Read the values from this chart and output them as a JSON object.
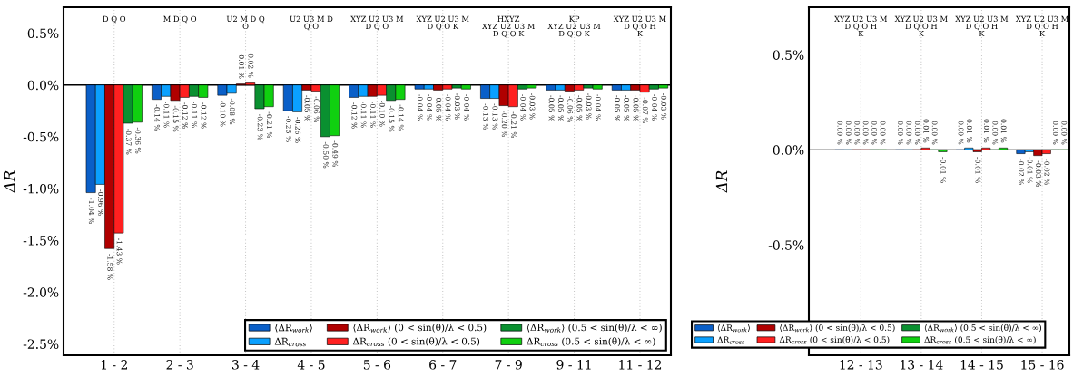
{
  "chart_data": [
    {
      "type": "bar",
      "ylabel": "ΔR",
      "categories": [
        "1 - 2",
        "2 - 3",
        "3 - 4",
        "4 - 5",
        "5 - 6",
        "6 - 7",
        "7 - 9",
        "9 - 11",
        "11 - 12"
      ],
      "ylim": [
        -2.61,
        0.75
      ],
      "yticks": [
        {
          "value": 0.5,
          "label": "0.5%"
        },
        {
          "value": 0.0,
          "label": "0.0%"
        },
        {
          "value": -0.5,
          "label": "-0.5%"
        },
        {
          "value": -1.0,
          "label": "-1.0%"
        },
        {
          "value": -1.5,
          "label": "-1.5%"
        },
        {
          "value": -2.0,
          "label": "-2.0%"
        },
        {
          "value": -2.5,
          "label": "-2.5%"
        }
      ],
      "grid": "x",
      "legend": "bottom right",
      "series": [
        {
          "name": "⟨ΔR$_{work}$⟩",
          "color": "#0a5fc8",
          "values": [
            -1.04,
            -0.14,
            -0.1,
            -0.25,
            -0.12,
            -0.04,
            -0.13,
            -0.05,
            -0.05
          ],
          "value_labels": [
            "-1.04 %",
            "-0.14 %",
            "-0.10 %",
            "-0.25 %",
            "-0.12 %",
            "-0.04 %",
            "-0.13 %",
            "-0.05 %",
            "-0.05 %"
          ]
        },
        {
          "name": "ΔR$_{cross}$",
          "color": "#0aa0ff",
          "values": [
            -0.96,
            -0.11,
            -0.08,
            -0.26,
            -0.11,
            -0.04,
            -0.13,
            -0.05,
            -0.05
          ],
          "value_labels": [
            "-0.96 %",
            "-0.11 %",
            "-0.08 %",
            "-0.26 %",
            "-0.11 %",
            "-0.04 %",
            "-0.13 %",
            "-0.05 %",
            "-0.05 %"
          ]
        },
        {
          "name": "⟨ΔR$_{work}$⟩ (0 < sin(θ)/λ < 0.5)",
          "color": "#b00000",
          "values": [
            -1.58,
            -0.15,
            0.01,
            -0.05,
            -0.11,
            -0.05,
            -0.2,
            -0.06,
            -0.05
          ],
          "value_labels": [
            "-1.58 %",
            "-0.15 %",
            "0.01 %",
            "-0.05 %",
            "-0.11 %",
            "-0.05 %",
            "-0.20 %",
            "-0.06 %",
            "-0.05 %"
          ]
        },
        {
          "name": "ΔR$_{cross}$ (0 < sin(θ)/λ < 0.5)",
          "color": "#ff2020",
          "values": [
            -1.43,
            -0.12,
            0.02,
            -0.06,
            -0.1,
            -0.04,
            -0.21,
            -0.05,
            -0.07
          ],
          "value_labels": [
            "-1.43 %",
            "-0.12 %",
            "0.02 %",
            "-0.06 %",
            "-0.10 %",
            "-0.04 %",
            "-0.21 %",
            "-0.05 %",
            "-0.07 %"
          ]
        },
        {
          "name": "⟨ΔR$_{work}$⟩ (0.5 < sin(θ)/λ < ∞)",
          "color": "#0a9030",
          "values": [
            -0.37,
            -0.11,
            -0.23,
            -0.5,
            -0.15,
            -0.03,
            -0.04,
            -0.03,
            -0.04
          ],
          "value_labels": [
            "-0.37 %",
            "-0.11 %",
            "-0.23 %",
            "-0.50 %",
            "-0.15 %",
            "-0.03 %",
            "-0.04 %",
            "-0.03 %",
            "-0.04 %"
          ]
        },
        {
          "name": "ΔR$_{cross}$ (0.5 < sin(θ)/λ < ∞)",
          "color": "#10d010",
          "values": [
            -0.36,
            -0.12,
            -0.21,
            -0.49,
            -0.14,
            -0.04,
            -0.03,
            -0.04,
            -0.03
          ],
          "value_labels": [
            "-0.36 %",
            "-0.12 %",
            "-0.21 %",
            "-0.49 %",
            "-0.14 %",
            "-0.04 %",
            "-0.03 %",
            "-0.04 %",
            "-0.03 %"
          ]
        }
      ],
      "annotations": [
        "D Q O",
        "M D Q O",
        "U2 M D Q\nO",
        "U2 U3 M D\nQ O",
        "XYZ U2 U3 M\nD Q O",
        "XYZ U2 U3 M\nD Q O K",
        "HXYZ\nXYZ U2 U3 M\nD Q O K",
        "KP\nXYZ U2 U3 M\nD Q O K",
        "XYZ U2 U3 M\nD Q O H\nK"
      ]
    },
    {
      "type": "bar",
      "ylabel": "ΔR",
      "categories": [
        "12 - 13",
        "13 - 14",
        "14 - 15",
        "15 - 16"
      ],
      "ylim": [
        -1.08,
        0.75
      ],
      "yticks": [
        {
          "value": 0.5,
          "label": "0.5%"
        },
        {
          "value": 0.0,
          "label": "0.0%"
        },
        {
          "value": -0.5,
          "label": "-0.5%"
        }
      ],
      "grid": "x",
      "legend": "bottom left",
      "series": [
        {
          "name": "⟨ΔR$_{work}$⟩",
          "color": "#0a5fc8",
          "values": [
            0.0,
            0.0,
            0.0,
            -0.02
          ],
          "value_labels": [
            "0.00 %",
            "0.00 %",
            "0.00 %",
            "-0.02 %"
          ]
        },
        {
          "name": "ΔR$_{cross}$",
          "color": "#0aa0ff",
          "values": [
            0.0,
            0.0,
            0.01,
            -0.01
          ],
          "value_labels": [
            "0.00 %",
            "0.00 %",
            "0.01 %",
            "-0.01 %"
          ]
        },
        {
          "name": "⟨ΔR$_{work}$⟩ (0 < sin(θ)/λ < 0.5)",
          "color": "#b00000",
          "values": [
            0.0,
            0.0,
            -0.01,
            -0.03
          ],
          "value_labels": [
            "0.00 %",
            "0.00 %",
            "-0.01 %",
            "-0.03 %"
          ]
        },
        {
          "name": "ΔR$_{cross}$ (0 < sin(θ)/λ < 0.5)",
          "color": "#ff2020",
          "values": [
            0.0,
            0.01,
            0.01,
            -0.02
          ],
          "value_labels": [
            "0.00 %",
            "0.01 %",
            "0.01 %",
            "-0.02 %"
          ]
        },
        {
          "name": "⟨ΔR$_{work}$⟩ (0.5 < sin(θ)/λ < ∞)",
          "color": "#0a9030",
          "values": [
            0.0,
            0.0,
            0.0,
            0.0
          ],
          "value_labels": [
            "0.00 %",
            "0.00 %",
            "0.00 %",
            "0.00 %"
          ]
        },
        {
          "name": "ΔR$_{cross}$ (0.5 < sin(θ)/λ < ∞)",
          "color": "#10d010",
          "values": [
            0.0,
            -0.01,
            0.01,
            0.0
          ],
          "value_labels": [
            "0.00 %",
            "-0.01 %",
            "0.01 %",
            "0.00 %"
          ]
        }
      ],
      "annotations": [
        "XYZ U2 U3 M\nD Q O H\nK",
        "XYZ U2 U3 M\nD Q O H\nK",
        "XYZ U2 U3 M\nD Q O H\nK",
        "XYZ U2 U3 M\nD Q O H\nK"
      ]
    }
  ]
}
